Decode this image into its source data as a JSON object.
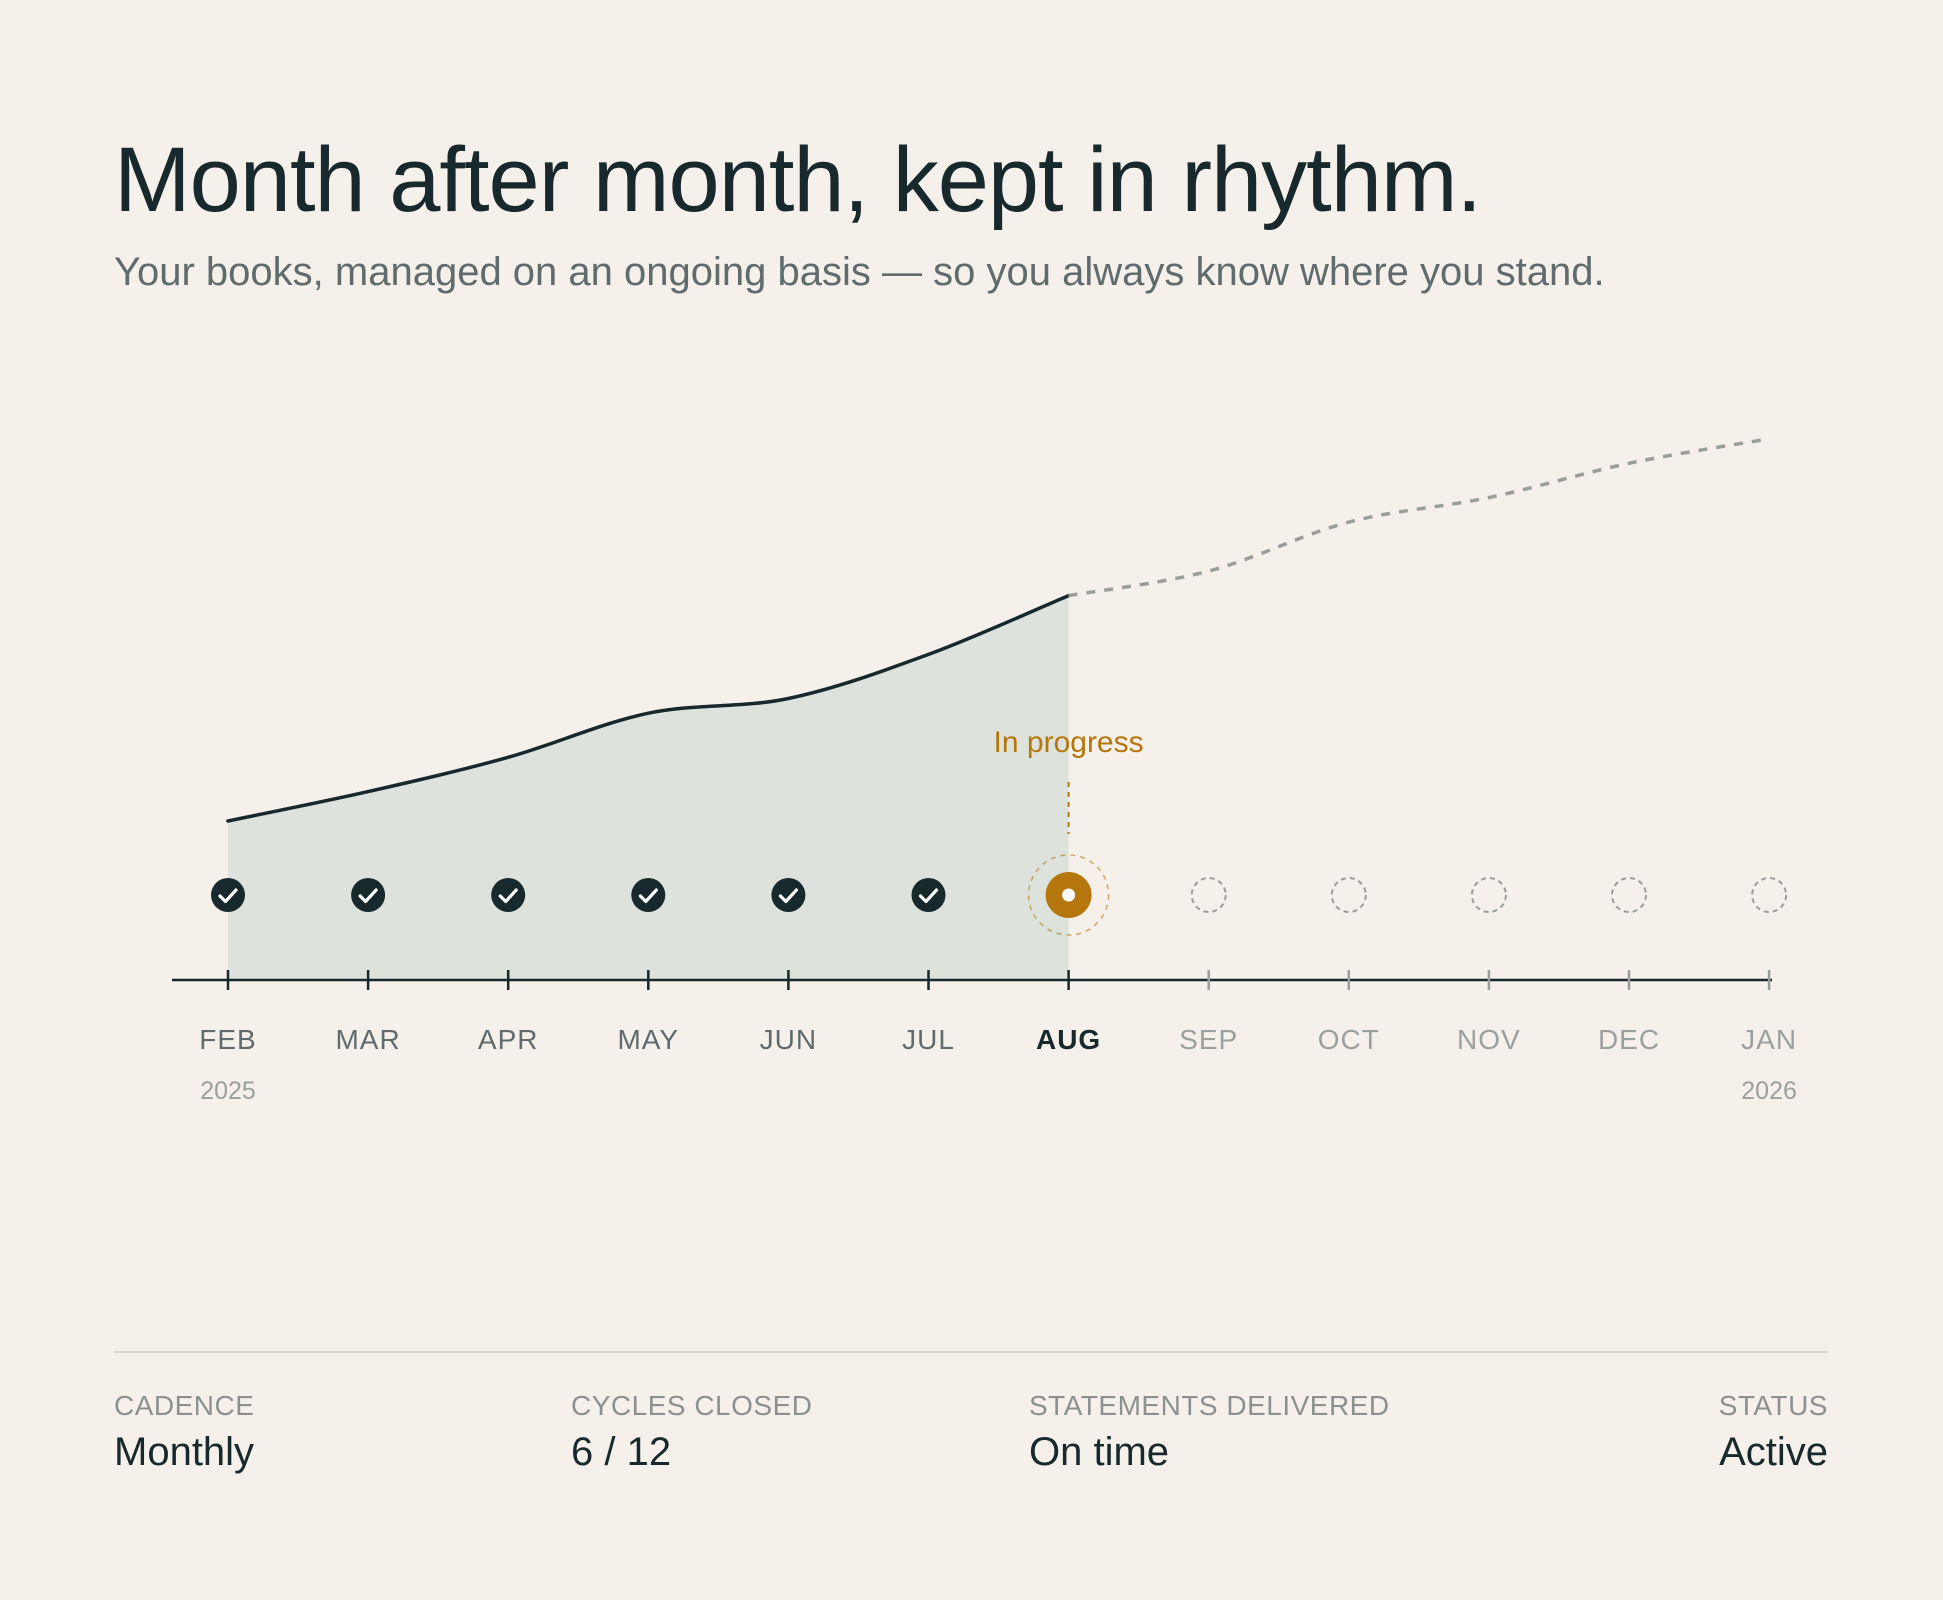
{
  "header": {
    "title": "Month after month, kept in rhythm.",
    "subtitle": "Your books, managed on an ongoing basis — so you always know where you stand."
  },
  "chart_data": {
    "type": "area",
    "months": [
      "FEB",
      "MAR",
      "APR",
      "MAY",
      "JUN",
      "JUL",
      "AUG",
      "SEP",
      "OCT",
      "NOV",
      "DEC",
      "JAN"
    ],
    "year_labels": {
      "first": "2025",
      "last": "2026"
    },
    "current_index": 6,
    "completed_count": 6,
    "current_annotation": "In progress",
    "y_range": [
      0,
      100
    ],
    "actual_values": [
      10,
      16,
      23,
      32,
      35,
      44,
      56
    ],
    "projected_values": [
      56,
      61,
      71,
      76,
      83,
      88
    ],
    "projected_x_index": [
      6,
      7,
      8,
      9,
      10,
      11
    ],
    "colors": {
      "ink": "#17292c",
      "area": "#dde2dc",
      "accent": "#b5770d",
      "muted": "#9a9e9a",
      "label": "#5f6b6c",
      "future_label": "#9aa09d"
    },
    "icons": {
      "completed": "check-circle-icon",
      "current": "in-progress-dot-icon",
      "upcoming": "dashed-circle-icon"
    }
  },
  "stats": [
    {
      "label": "CADENCE",
      "value": "Monthly"
    },
    {
      "label": "CYCLES CLOSED",
      "value": "6 / 12"
    },
    {
      "label": "STATEMENTS DELIVERED",
      "value": "On time"
    },
    {
      "label": "STATUS",
      "value": "Active"
    }
  ]
}
